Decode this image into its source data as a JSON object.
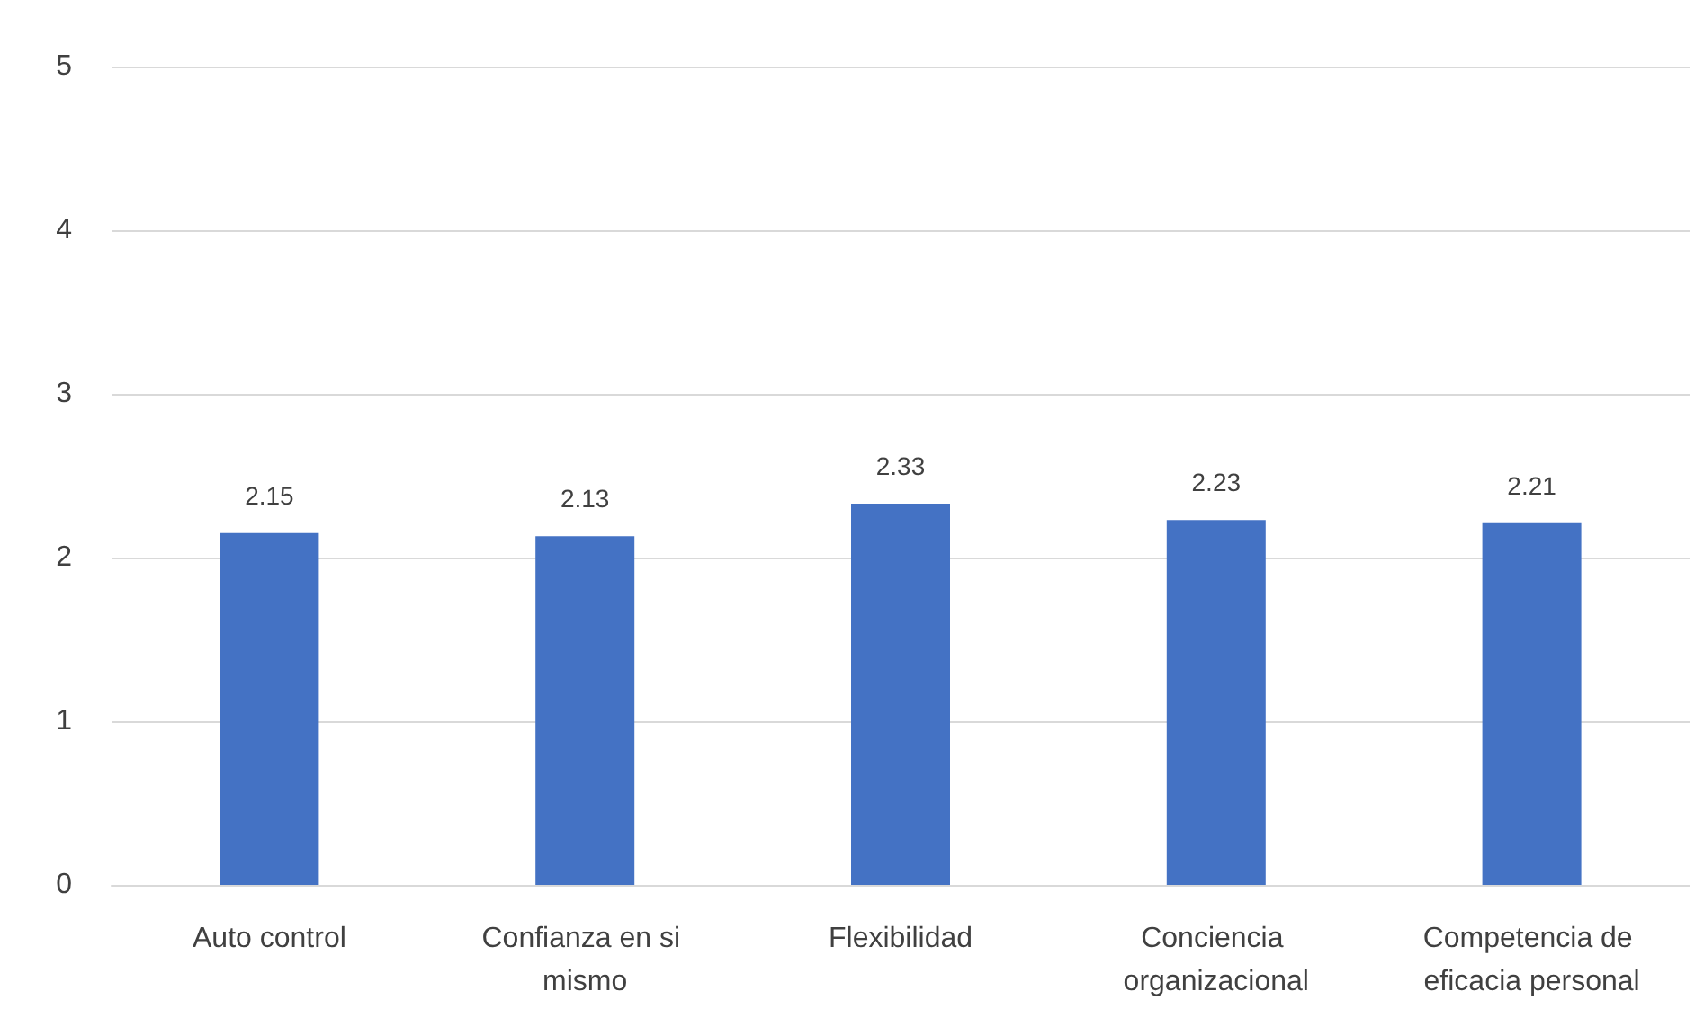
{
  "chart_data": {
    "type": "bar",
    "categories": [
      "Auto control",
      "Confianza en si mismo",
      "Flexibilidad",
      "Conciencia organizacional",
      "Competencia de eficacia personal"
    ],
    "values": [
      2.15,
      2.13,
      2.33,
      2.23,
      2.21
    ],
    "color": "#4472c4",
    "ylim": [
      0,
      5
    ],
    "yticks": [
      0,
      1,
      2,
      3,
      4,
      5
    ],
    "grid": "y",
    "data_labels": true
  }
}
